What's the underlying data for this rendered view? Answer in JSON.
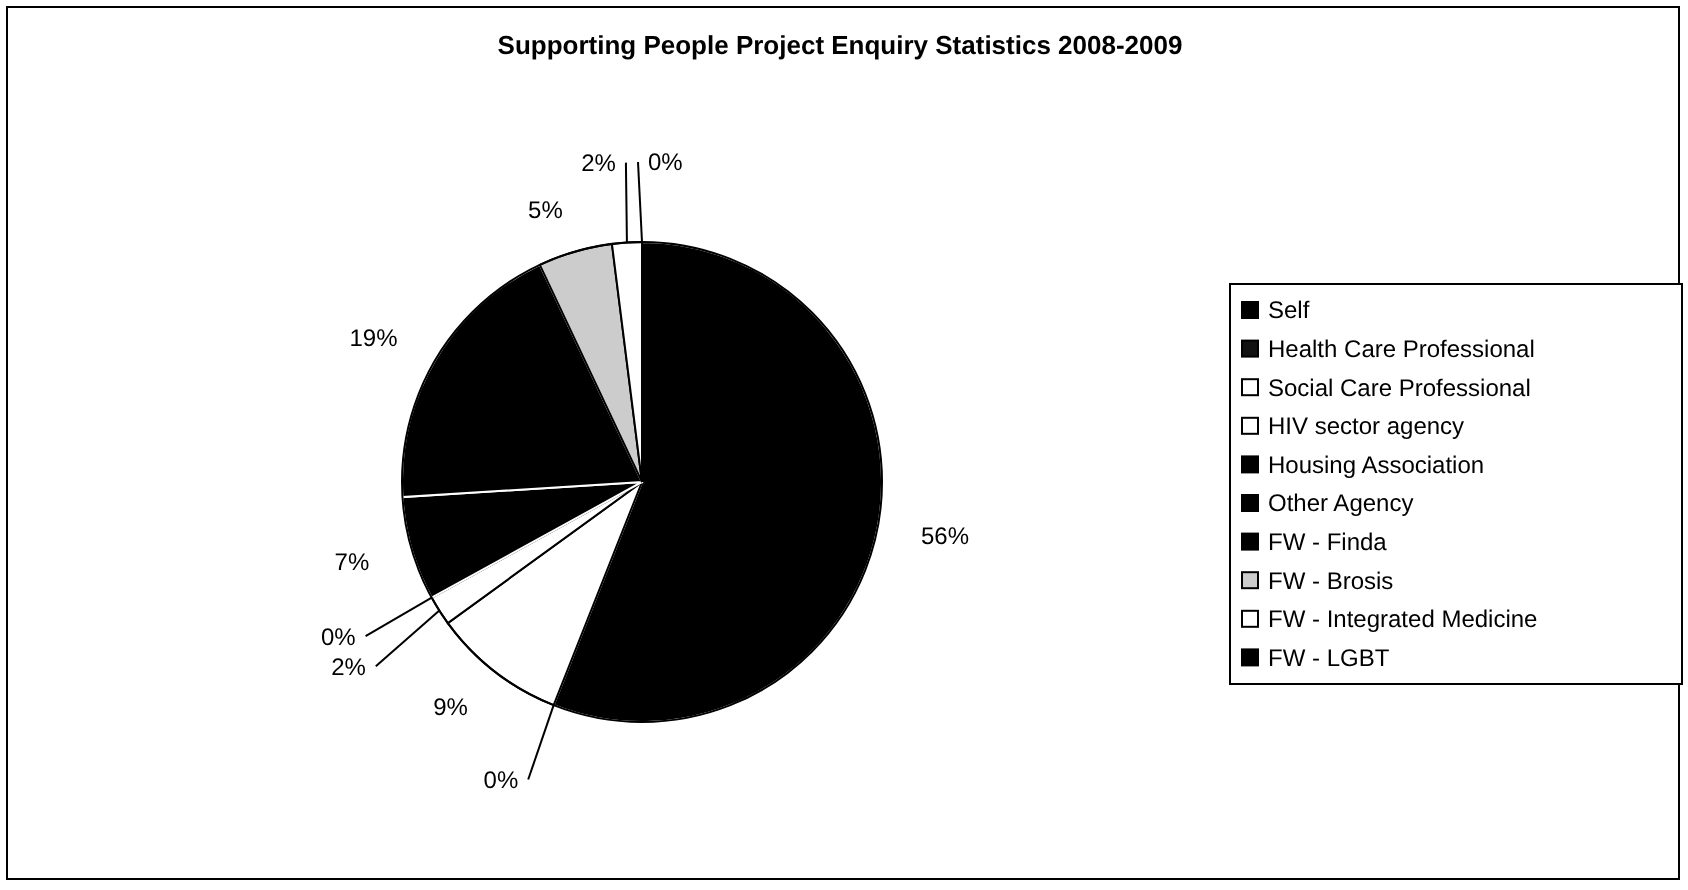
{
  "chart_data": {
    "type": "pie",
    "title": "Supporting People Project Enquiry Statistics 2008-2009",
    "categories": [
      "Self",
      "Health Care Professional",
      "Social Care Professional",
      "HIV sector agency",
      "Housing Association",
      "Other Agency",
      "FW - Finda",
      "FW - Brosis",
      "FW - Integrated Medicine",
      "FW - LGBT"
    ],
    "values": [
      56,
      0,
      9,
      2,
      0,
      7,
      19,
      5,
      2,
      0
    ],
    "colors": [
      "#000000",
      "#111111",
      "#ffffff",
      "#ffffff",
      "#000000",
      "#000000",
      "#000000",
      "#cccccc",
      "#ffffff",
      "#000000"
    ],
    "value_labels": [
      "56%",
      "0%",
      "9%",
      "2%",
      "0%",
      "7%",
      "19%",
      "5%",
      "2%",
      "0%"
    ],
    "legend": "right"
  }
}
